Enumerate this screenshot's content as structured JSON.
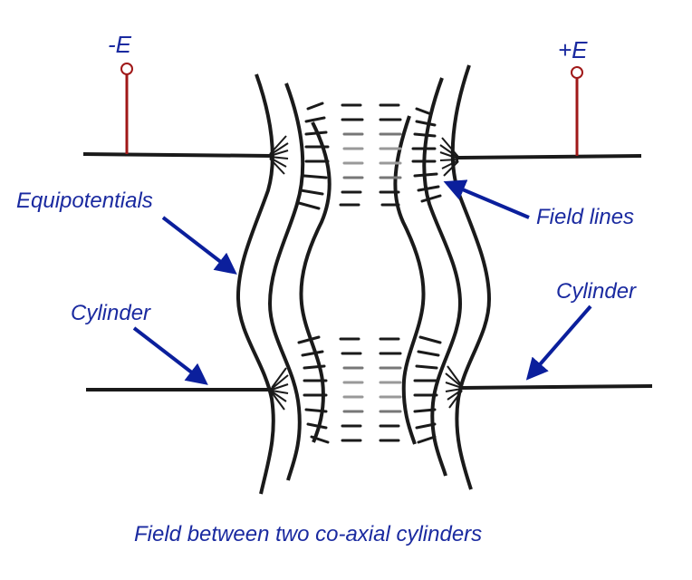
{
  "labels": {
    "negative_terminal": "-E",
    "positive_terminal": "+E",
    "equipotentials": "Equipotentials",
    "field_lines": "Field lines",
    "cylinder_left": "Cylinder",
    "cylinder_right": "Cylinder"
  },
  "caption": "Field between two co-axial cylinders",
  "colors": {
    "label_blue": "#1a2aa0",
    "arrow_blue": "#0b1f9c",
    "terminal_red": "#a01818",
    "line_black": "#1a1a1a"
  }
}
